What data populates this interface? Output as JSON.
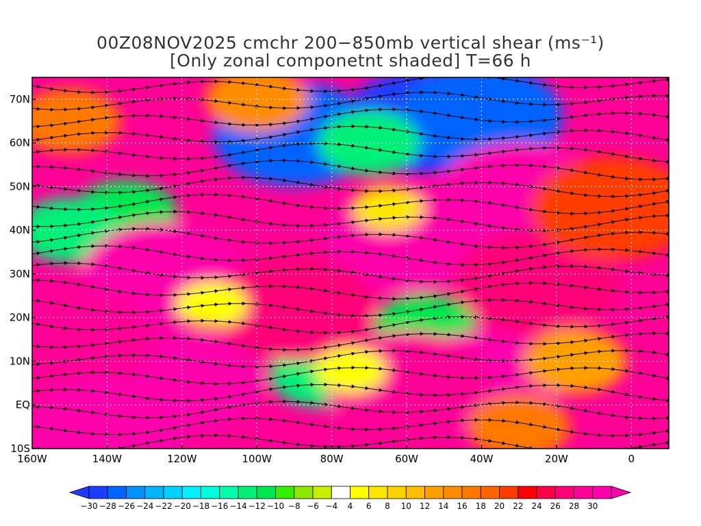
{
  "title": {
    "line1": "00Z08NOV2025 cmchr 200−850mb vertical shear (ms⁻¹)",
    "line2": "[Only zonal componetnt shaded] T=66 h"
  },
  "map": {
    "projection": "lat-lon",
    "lon_range": [
      -160,
      10
    ],
    "lat_range": [
      -10,
      75
    ],
    "lon_ticks": [
      {
        "value": -160,
        "label": "160W"
      },
      {
        "value": -140,
        "label": "140W"
      },
      {
        "value": -120,
        "label": "120W"
      },
      {
        "value": -100,
        "label": "100W"
      },
      {
        "value": -80,
        "label": "80W"
      },
      {
        "value": -60,
        "label": "60W"
      },
      {
        "value": -40,
        "label": "40W"
      },
      {
        "value": -20,
        "label": "20W"
      },
      {
        "value": 0,
        "label": "0"
      }
    ],
    "lat_ticks": [
      {
        "value": 70,
        "label": "70N"
      },
      {
        "value": 60,
        "label": "60N"
      },
      {
        "value": 50,
        "label": "50N"
      },
      {
        "value": 40,
        "label": "40N"
      },
      {
        "value": 30,
        "label": "30N"
      },
      {
        "value": 20,
        "label": "20N"
      },
      {
        "value": 10,
        "label": "10N"
      },
      {
        "value": 0,
        "label": "EQ"
      },
      {
        "value": -10,
        "label": "10S"
      }
    ],
    "grid": true,
    "shaded_field": "zonal component of 200-850mb vertical shear (ms⁻¹)",
    "overlay": "shear streamlines",
    "shear_regions": [
      {
        "lon": -90,
        "lat": 62,
        "value": -28
      },
      {
        "lon": -55,
        "lat": 65,
        "value": -30
      },
      {
        "lon": -40,
        "lat": 66,
        "value": -28
      },
      {
        "lon": -70,
        "lat": 60,
        "value": -14
      },
      {
        "lon": -135,
        "lat": 44,
        "value": -12
      },
      {
        "lon": -150,
        "lat": 40,
        "value": -14
      },
      {
        "lon": -55,
        "lat": 18,
        "value": -12
      },
      {
        "lon": -83,
        "lat": 7,
        "value": -14
      },
      {
        "lon": -125,
        "lat": 30,
        "value": 30
      },
      {
        "lon": -60,
        "lat": 38,
        "value": 30
      },
      {
        "lon": -30,
        "lat": 48,
        "value": 30
      },
      {
        "lon": -120,
        "lat": 5,
        "value": 30
      },
      {
        "lon": -40,
        "lat": 5,
        "value": 30
      },
      {
        "lon": -150,
        "lat": 15,
        "value": 28
      },
      {
        "lon": -140,
        "lat": -5,
        "value": 30
      },
      {
        "lon": -60,
        "lat": 5,
        "value": 28
      },
      {
        "lon": -25,
        "lat": 28,
        "value": 26
      },
      {
        "lon": -90,
        "lat": 22,
        "value": 26
      },
      {
        "lon": -5,
        "lat": 45,
        "value": 20
      },
      {
        "lon": -150,
        "lat": 65,
        "value": 16
      },
      {
        "lon": -100,
        "lat": 70,
        "value": 14
      },
      {
        "lon": -15,
        "lat": 10,
        "value": 12
      },
      {
        "lon": -30,
        "lat": -5,
        "value": 16
      },
      {
        "lon": -65,
        "lat": 45,
        "value": 6
      },
      {
        "lon": -112,
        "lat": 23,
        "value": 4
      },
      {
        "lon": -75,
        "lat": 8,
        "value": 4
      }
    ]
  },
  "colorbar": {
    "colors": [
      "#1e3cff",
      "#0064ff",
      "#0090ff",
      "#00b4ff",
      "#00d2ff",
      "#00f0ff",
      "#00ffdc",
      "#00ffaa",
      "#00f078",
      "#00e650",
      "#32f000",
      "#8ce600",
      "#c8f000",
      "#ffffff",
      "#ffff00",
      "#ffe600",
      "#ffd200",
      "#ffbe00",
      "#ffa000",
      "#ff8c00",
      "#ff7800",
      "#ff6400",
      "#ff3c00",
      "#ff0000",
      "#ff0046",
      "#ff0078",
      "#ff0096",
      "#ff00aa"
    ],
    "labels": [
      "−30",
      "−28",
      "−26",
      "−24",
      "−22",
      "−20",
      "−18",
      "−16",
      "−14",
      "−12",
      "−10",
      "−8",
      "−6",
      "−4",
      "4",
      "6",
      "8",
      "10",
      "12",
      "14",
      "16",
      "18",
      "20",
      "22",
      "24",
      "26",
      "28",
      "30"
    ]
  }
}
